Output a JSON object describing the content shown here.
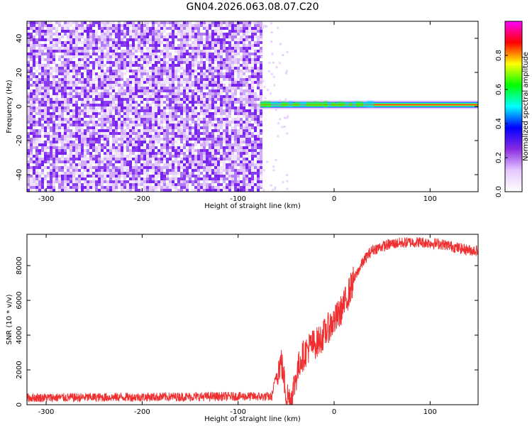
{
  "figure": {
    "title": "GN04.2026.063.08.07.C20"
  },
  "chart_data": [
    {
      "type": "heatmap",
      "xlabel": "Height of straight line (km)",
      "ylabel": "Frequency (Hz)",
      "xlim": [
        -320,
        150
      ],
      "ylim": [
        -50,
        50
      ],
      "xticks": [
        -300,
        -200,
        -100,
        0,
        100
      ],
      "yticks": [
        -40,
        -20,
        0,
        20,
        40
      ],
      "noise_region_x": [
        -320,
        -77
      ],
      "signal_region_x": [
        -77,
        150
      ],
      "signal_frequency_hz": 1,
      "grid": false,
      "colorbar": {
        "label": "Normalized spectral amplitude",
        "range": [
          0,
          1
        ],
        "ticks": [
          "0.0",
          "0.2",
          "0.4",
          "0.6",
          "0.8"
        ],
        "colors": [
          "#ffffff",
          "#e6c8ff",
          "#8a2be2",
          "#0000ff",
          "#00ffff",
          "#00ff00",
          "#ffff00",
          "#ff0000",
          "#ff00ff"
        ]
      }
    },
    {
      "type": "line",
      "xlabel": "Height of straight line (km)",
      "ylabel": "SNR (10 * v/v)",
      "xlim": [
        -320,
        150
      ],
      "ylim": [
        0,
        9800
      ],
      "xticks": [
        -300,
        -200,
        -100,
        0,
        100
      ],
      "yticks": [
        0,
        2000,
        4000,
        6000,
        8000
      ],
      "color": "#f03030",
      "grid": false,
      "series": [
        {
          "x": [
            -320,
            -250,
            -200,
            -150,
            -100,
            -80,
            -65,
            -60,
            -55,
            -52,
            -50,
            -45,
            -40,
            -35,
            -30,
            -25,
            -20,
            -15,
            -10,
            -5,
            0,
            5,
            10,
            15,
            20,
            25,
            30,
            35,
            40,
            50,
            60,
            70,
            80,
            90,
            100,
            110,
            120,
            130,
            140,
            150
          ],
          "values": [
            400,
            420,
            440,
            460,
            480,
            470,
            450,
            1800,
            2500,
            1400,
            600,
            300,
            1500,
            2600,
            3000,
            3400,
            3500,
            3700,
            4100,
            4500,
            4800,
            5200,
            5700,
            6400,
            7100,
            7700,
            8200,
            8600,
            8900,
            9100,
            9250,
            9300,
            9350,
            9350,
            9300,
            9250,
            9150,
            9000,
            8900,
            8850
          ]
        }
      ]
    }
  ]
}
